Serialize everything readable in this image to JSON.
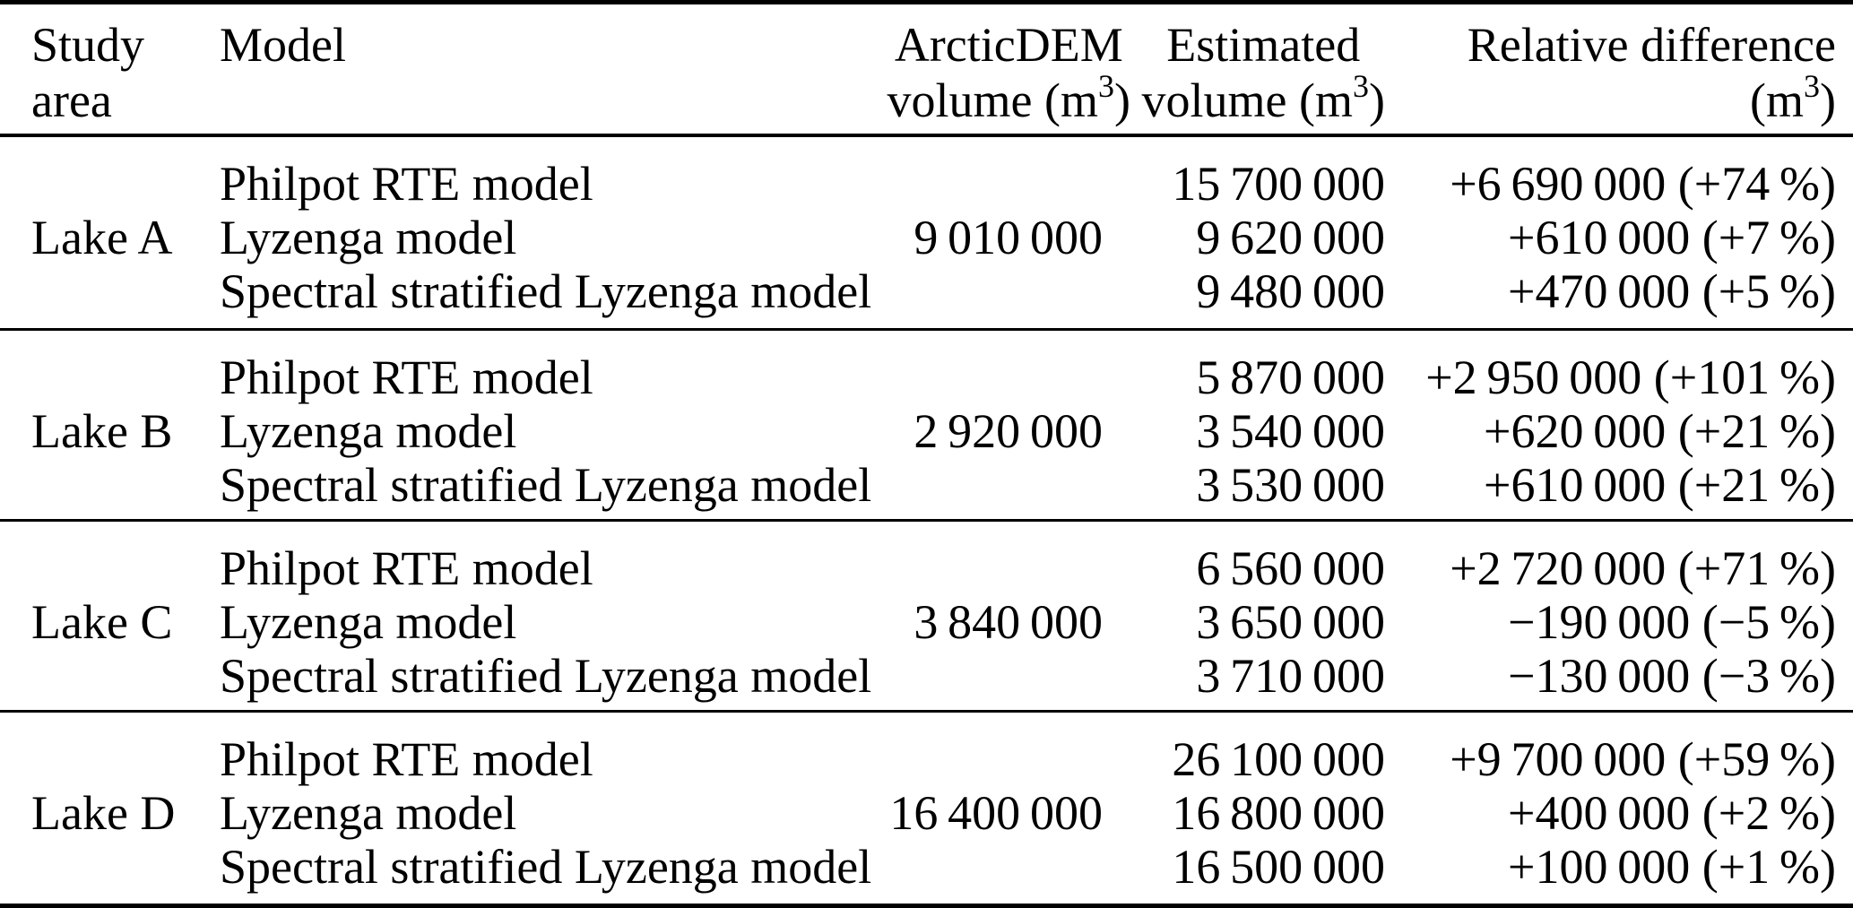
{
  "header": {
    "study_area": [
      "Study",
      "area"
    ],
    "model": "Model",
    "arcticdem_line1": "ArcticDEM",
    "estimated_line1": "Estimated",
    "relative_line1": "Relative difference",
    "volume_unit_pre": "volume (m",
    "relative_unit_pre": "(m",
    "unit_sup": "3",
    "unit_post": ")"
  },
  "groups": [
    {
      "study_area": "Lake A",
      "arcticdem_volume": "9 010 000",
      "rows": [
        {
          "model": "Philpot RTE model",
          "estimated": "15 700 000",
          "relative": "+6 690 000 (+74 %)"
        },
        {
          "model": "Lyzenga model",
          "estimated": "9 620 000",
          "relative": "+610 000 (+7 %)"
        },
        {
          "model": "Spectral stratified Lyzenga model",
          "estimated": "9 480 000",
          "relative": "+470 000 (+5 %)"
        }
      ]
    },
    {
      "study_area": "Lake B",
      "arcticdem_volume": "2 920 000",
      "rows": [
        {
          "model": "Philpot RTE model",
          "estimated": "5 870 000",
          "relative": "+2 950 000 (+101 %)"
        },
        {
          "model": "Lyzenga model",
          "estimated": "3 540 000",
          "relative": "+620 000 (+21 %)"
        },
        {
          "model": "Spectral stratified Lyzenga model",
          "estimated": "3 530 000",
          "relative": "+610 000 (+21 %)"
        }
      ]
    },
    {
      "study_area": "Lake C",
      "arcticdem_volume": "3 840 000",
      "rows": [
        {
          "model": "Philpot RTE model",
          "estimated": "6 560 000",
          "relative": "+2 720 000 (+71 %)"
        },
        {
          "model": "Lyzenga model",
          "estimated": "3 650 000",
          "relative": "−190 000 (−5 %)"
        },
        {
          "model": "Spectral stratified Lyzenga model",
          "estimated": "3 710 000",
          "relative": "−130 000 (−3 %)"
        }
      ]
    },
    {
      "study_area": "Lake D",
      "arcticdem_volume": "16 400 000",
      "rows": [
        {
          "model": "Philpot RTE model",
          "estimated": "26 100 000",
          "relative": "+9 700 000 (+59 %)"
        },
        {
          "model": "Lyzenga model",
          "estimated": "16 800 000",
          "relative": "+400 000 (+2 %)"
        },
        {
          "model": "Spectral stratified Lyzenga model",
          "estimated": "16 500 000",
          "relative": "+100 000 (+1 %)"
        }
      ]
    }
  ]
}
